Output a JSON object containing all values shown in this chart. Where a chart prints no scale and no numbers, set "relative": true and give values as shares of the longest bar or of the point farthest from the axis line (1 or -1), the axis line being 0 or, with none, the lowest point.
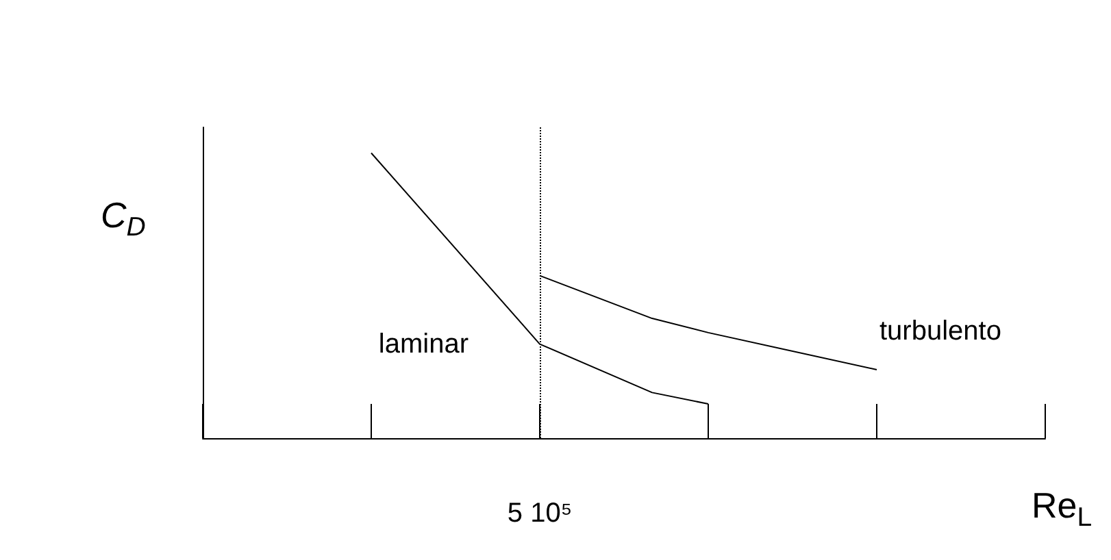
{
  "chart_data": {
    "type": "line",
    "relative": true,
    "xlabel": "Re$_{L}$",
    "ylabel": "C$_{D}$",
    "categories": [
      null,
      null,
      null,
      null,
      null,
      null,
      null,
      null,
      null,
      null,
      null,
      null,
      null,
      null,
      null,
      null
    ],
    "series": [
      {
        "name": "laminar",
        "color": "#000000",
        "values": [
          null,
          null,
          null,
          1,
          null,
          null,
          0.33,
          null,
          0.16,
          0.12,
          null,
          null,
          null,
          null,
          null,
          null
        ]
      },
      {
        "name": "turbulento",
        "color": "#000000",
        "values": [
          null,
          null,
          null,
          null,
          null,
          null,
          0.57,
          null,
          0.42,
          0.37,
          null,
          null,
          0.24,
          null,
          null,
          null
        ]
      }
    ],
    "ref_lines": [
      {
        "axis": "x",
        "label": "5 10⁵",
        "line_style": "dotted",
        "color": "#000000"
      }
    ],
    "legend": false,
    "grid": false,
    "marker": "none",
    "line_style": "solid"
  }
}
